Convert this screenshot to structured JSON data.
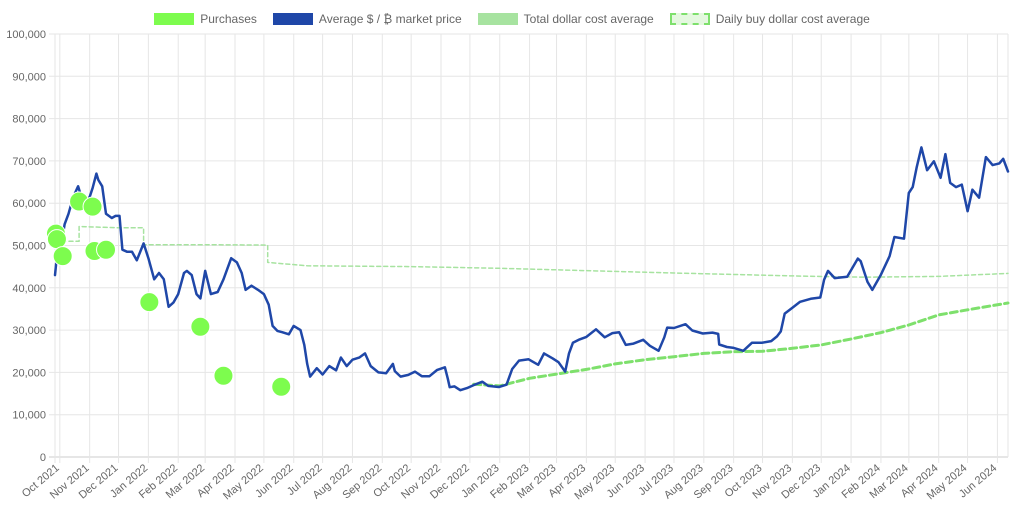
{
  "chart_data": {
    "type": "line",
    "title": "",
    "xlabel": "",
    "ylabel": "",
    "ylim": [
      0,
      100000
    ],
    "xlim": [
      "2021-09-26",
      "2024-06-12"
    ],
    "grid": true,
    "legend_position": "top-center",
    "y_ticks": [
      "0",
      "10,000",
      "20,000",
      "30,000",
      "40,000",
      "50,000",
      "60,000",
      "70,000",
      "80,000",
      "90,000",
      "100,000"
    ],
    "x_tick_labels": [
      "Oct 2021",
      "Nov 2021",
      "Dec 2021",
      "Jan 2022",
      "Feb 2022",
      "Mar 2022",
      "Apr 2022",
      "May 2022",
      "Jun 2022",
      "Jul 2022",
      "Aug 2022",
      "Sep 2022",
      "Oct 2022",
      "Nov 2022",
      "Dec 2022",
      "Jan 2023",
      "Feb 2023",
      "Mar 2023",
      "Apr 2023",
      "May 2023",
      "Jun 2023",
      "Jul 2023",
      "Aug 2023",
      "Sep 2023",
      "Oct 2023",
      "Nov 2023",
      "Dec 2023",
      "Jan 2024",
      "Feb 2024",
      "Mar 2024",
      "Apr 2024",
      "May 2024",
      "Jun 2024"
    ],
    "x_tick_dates": [
      "2021-10-01",
      "2021-11-01",
      "2021-12-01",
      "2022-01-01",
      "2022-02-01",
      "2022-03-01",
      "2022-04-01",
      "2022-05-01",
      "2022-06-01",
      "2022-07-01",
      "2022-08-01",
      "2022-09-01",
      "2022-10-01",
      "2022-11-01",
      "2022-12-01",
      "2023-01-01",
      "2023-02-01",
      "2023-03-01",
      "2023-04-01",
      "2023-05-01",
      "2023-06-01",
      "2023-07-01",
      "2023-08-01",
      "2023-09-01",
      "2023-10-01",
      "2023-11-01",
      "2023-12-01",
      "2024-01-01",
      "2024-02-01",
      "2024-03-01",
      "2024-04-01",
      "2024-05-01",
      "2024-06-01"
    ],
    "series": [
      {
        "name": "Purchases",
        "kind": "points",
        "color": "#7dfc4e",
        "points": [
          {
            "x": "2021-09-27",
            "y": 52800
          },
          {
            "x": "2021-09-28",
            "y": 51500
          },
          {
            "x": "2021-10-04",
            "y": 47500
          },
          {
            "x": "2021-10-21",
            "y": 60400
          },
          {
            "x": "2021-11-04",
            "y": 59200
          },
          {
            "x": "2021-11-06",
            "y": 48700
          },
          {
            "x": "2021-11-18",
            "y": 49000
          },
          {
            "x": "2022-01-02",
            "y": 36600
          },
          {
            "x": "2022-02-24",
            "y": 30800
          },
          {
            "x": "2022-03-20",
            "y": 19200
          },
          {
            "x": "2022-05-19",
            "y": 16600
          }
        ]
      },
      {
        "name": "Average $ / ₿ market price",
        "kind": "line",
        "color": "#1f47a8",
        "points": [
          {
            "x": "2021-09-26",
            "y": 43000
          },
          {
            "x": "2021-09-28",
            "y": 47500
          },
          {
            "x": "2021-10-01",
            "y": 48000
          },
          {
            "x": "2021-10-06",
            "y": 55000
          },
          {
            "x": "2021-10-10",
            "y": 57500
          },
          {
            "x": "2021-10-15",
            "y": 61500
          },
          {
            "x": "2021-10-20",
            "y": 64000
          },
          {
            "x": "2021-10-24",
            "y": 61000
          },
          {
            "x": "2021-10-28",
            "y": 60500
          },
          {
            "x": "2021-11-01",
            "y": 61500
          },
          {
            "x": "2021-11-04",
            "y": 63500
          },
          {
            "x": "2021-11-08",
            "y": 67000
          },
          {
            "x": "2021-11-10",
            "y": 65500
          },
          {
            "x": "2021-11-14",
            "y": 64000
          },
          {
            "x": "2021-11-18",
            "y": 57500
          },
          {
            "x": "2021-11-24",
            "y": 56500
          },
          {
            "x": "2021-11-28",
            "y": 57000
          },
          {
            "x": "2021-12-02",
            "y": 57000
          },
          {
            "x": "2021-12-05",
            "y": 49000
          },
          {
            "x": "2021-12-10",
            "y": 48500
          },
          {
            "x": "2021-12-15",
            "y": 48500
          },
          {
            "x": "2021-12-20",
            "y": 46500
          },
          {
            "x": "2021-12-27",
            "y": 50500
          },
          {
            "x": "2022-01-01",
            "y": 47000
          },
          {
            "x": "2022-01-07",
            "y": 42000
          },
          {
            "x": "2022-01-12",
            "y": 43500
          },
          {
            "x": "2022-01-17",
            "y": 42000
          },
          {
            "x": "2022-01-22",
            "y": 35500
          },
          {
            "x": "2022-01-27",
            "y": 36500
          },
          {
            "x": "2022-02-01",
            "y": 38500
          },
          {
            "x": "2022-02-07",
            "y": 43500
          },
          {
            "x": "2022-02-10",
            "y": 44000
          },
          {
            "x": "2022-02-15",
            "y": 43000
          },
          {
            "x": "2022-02-20",
            "y": 38500
          },
          {
            "x": "2022-02-24",
            "y": 37500
          },
          {
            "x": "2022-03-01",
            "y": 44000
          },
          {
            "x": "2022-03-07",
            "y": 38500
          },
          {
            "x": "2022-03-14",
            "y": 39000
          },
          {
            "x": "2022-03-20",
            "y": 42000
          },
          {
            "x": "2022-03-28",
            "y": 47000
          },
          {
            "x": "2022-04-03",
            "y": 46000
          },
          {
            "x": "2022-04-08",
            "y": 43500
          },
          {
            "x": "2022-04-12",
            "y": 39500
          },
          {
            "x": "2022-04-18",
            "y": 40500
          },
          {
            "x": "2022-04-25",
            "y": 39500
          },
          {
            "x": "2022-05-01",
            "y": 38500
          },
          {
            "x": "2022-05-06",
            "y": 36000
          },
          {
            "x": "2022-05-10",
            "y": 31000
          },
          {
            "x": "2022-05-15",
            "y": 29800
          },
          {
            "x": "2022-05-20",
            "y": 29500
          },
          {
            "x": "2022-05-27",
            "y": 29000
          },
          {
            "x": "2022-06-01",
            "y": 31000
          },
          {
            "x": "2022-06-08",
            "y": 30000
          },
          {
            "x": "2022-06-12",
            "y": 26500
          },
          {
            "x": "2022-06-15",
            "y": 22000
          },
          {
            "x": "2022-06-18",
            "y": 19000
          },
          {
            "x": "2022-06-25",
            "y": 21000
          },
          {
            "x": "2022-07-01",
            "y": 19500
          },
          {
            "x": "2022-07-08",
            "y": 21500
          },
          {
            "x": "2022-07-15",
            "y": 20500
          },
          {
            "x": "2022-07-20",
            "y": 23500
          },
          {
            "x": "2022-07-26",
            "y": 21500
          },
          {
            "x": "2022-08-01",
            "y": 23000
          },
          {
            "x": "2022-08-08",
            "y": 23500
          },
          {
            "x": "2022-08-14",
            "y": 24500
          },
          {
            "x": "2022-08-20",
            "y": 21500
          },
          {
            "x": "2022-08-28",
            "y": 20000
          },
          {
            "x": "2022-09-05",
            "y": 19800
          },
          {
            "x": "2022-09-12",
            "y": 22000
          },
          {
            "x": "2022-09-14",
            "y": 20300
          },
          {
            "x": "2022-09-20",
            "y": 19000
          },
          {
            "x": "2022-09-28",
            "y": 19400
          },
          {
            "x": "2022-10-05",
            "y": 20200
          },
          {
            "x": "2022-10-12",
            "y": 19100
          },
          {
            "x": "2022-10-20",
            "y": 19100
          },
          {
            "x": "2022-10-28",
            "y": 20600
          },
          {
            "x": "2022-11-05",
            "y": 21200
          },
          {
            "x": "2022-11-08",
            "y": 18500
          },
          {
            "x": "2022-11-10",
            "y": 16500
          },
          {
            "x": "2022-11-15",
            "y": 16700
          },
          {
            "x": "2022-11-21",
            "y": 15800
          },
          {
            "x": "2022-11-28",
            "y": 16300
          },
          {
            "x": "2022-12-05",
            "y": 17000
          },
          {
            "x": "2022-12-14",
            "y": 17800
          },
          {
            "x": "2022-12-20",
            "y": 16800
          },
          {
            "x": "2022-12-31",
            "y": 16550
          },
          {
            "x": "2023-01-08",
            "y": 17100
          },
          {
            "x": "2023-01-14",
            "y": 20800
          },
          {
            "x": "2023-01-21",
            "y": 22800
          },
          {
            "x": "2023-01-31",
            "y": 23100
          },
          {
            "x": "2023-02-10",
            "y": 21800
          },
          {
            "x": "2023-02-16",
            "y": 24500
          },
          {
            "x": "2023-02-25",
            "y": 23300
          },
          {
            "x": "2023-03-03",
            "y": 22400
          },
          {
            "x": "2023-03-10",
            "y": 20200
          },
          {
            "x": "2023-03-14",
            "y": 24500
          },
          {
            "x": "2023-03-18",
            "y": 27000
          },
          {
            "x": "2023-03-25",
            "y": 27800
          },
          {
            "x": "2023-04-01",
            "y": 28400
          },
          {
            "x": "2023-04-11",
            "y": 30200
          },
          {
            "x": "2023-04-20",
            "y": 28300
          },
          {
            "x": "2023-04-28",
            "y": 29300
          },
          {
            "x": "2023-05-05",
            "y": 29500
          },
          {
            "x": "2023-05-12",
            "y": 26500
          },
          {
            "x": "2023-05-20",
            "y": 26800
          },
          {
            "x": "2023-05-30",
            "y": 27700
          },
          {
            "x": "2023-06-06",
            "y": 26300
          },
          {
            "x": "2023-06-15",
            "y": 25100
          },
          {
            "x": "2023-06-21",
            "y": 28300
          },
          {
            "x": "2023-06-24",
            "y": 30600
          },
          {
            "x": "2023-07-01",
            "y": 30500
          },
          {
            "x": "2023-07-13",
            "y": 31400
          },
          {
            "x": "2023-07-20",
            "y": 29900
          },
          {
            "x": "2023-07-31",
            "y": 29200
          },
          {
            "x": "2023-08-10",
            "y": 29400
          },
          {
            "x": "2023-08-16",
            "y": 29100
          },
          {
            "x": "2023-08-17",
            "y": 26600
          },
          {
            "x": "2023-08-25",
            "y": 26000
          },
          {
            "x": "2023-09-01",
            "y": 25800
          },
          {
            "x": "2023-09-11",
            "y": 25100
          },
          {
            "x": "2023-09-20",
            "y": 27000
          },
          {
            "x": "2023-09-30",
            "y": 27000
          },
          {
            "x": "2023-10-10",
            "y": 27400
          },
          {
            "x": "2023-10-16",
            "y": 28500
          },
          {
            "x": "2023-10-20",
            "y": 29700
          },
          {
            "x": "2023-10-24",
            "y": 33900
          },
          {
            "x": "2023-11-01",
            "y": 35300
          },
          {
            "x": "2023-11-09",
            "y": 36700
          },
          {
            "x": "2023-11-20",
            "y": 37400
          },
          {
            "x": "2023-11-30",
            "y": 37700
          },
          {
            "x": "2023-12-04",
            "y": 41900
          },
          {
            "x": "2023-12-08",
            "y": 44000
          },
          {
            "x": "2023-12-15",
            "y": 42300
          },
          {
            "x": "2023-12-28",
            "y": 42600
          },
          {
            "x": "2024-01-08",
            "y": 46900
          },
          {
            "x": "2024-01-11",
            "y": 46300
          },
          {
            "x": "2024-01-18",
            "y": 41400
          },
          {
            "x": "2024-01-23",
            "y": 39500
          },
          {
            "x": "2024-02-01",
            "y": 43100
          },
          {
            "x": "2024-02-10",
            "y": 47500
          },
          {
            "x": "2024-02-15",
            "y": 52000
          },
          {
            "x": "2024-02-25",
            "y": 51600
          },
          {
            "x": "2024-03-01",
            "y": 62400
          },
          {
            "x": "2024-03-05",
            "y": 63800
          },
          {
            "x": "2024-03-09",
            "y": 68400
          },
          {
            "x": "2024-03-14",
            "y": 73200
          },
          {
            "x": "2024-03-20",
            "y": 67800
          },
          {
            "x": "2024-03-27",
            "y": 69900
          },
          {
            "x": "2024-04-03",
            "y": 66000
          },
          {
            "x": "2024-04-08",
            "y": 71600
          },
          {
            "x": "2024-04-13",
            "y": 64800
          },
          {
            "x": "2024-04-19",
            "y": 63800
          },
          {
            "x": "2024-04-25",
            "y": 64400
          },
          {
            "x": "2024-05-01",
            "y": 58100
          },
          {
            "x": "2024-05-06",
            "y": 63200
          },
          {
            "x": "2024-05-13",
            "y": 61300
          },
          {
            "x": "2024-05-20",
            "y": 70900
          },
          {
            "x": "2024-05-27",
            "y": 69000
          },
          {
            "x": "2024-06-03",
            "y": 69400
          },
          {
            "x": "2024-06-07",
            "y": 70500
          },
          {
            "x": "2024-06-12",
            "y": 67500
          }
        ]
      },
      {
        "name": "Total dollar cost average",
        "kind": "line",
        "color": "#a7e3a0",
        "points": [
          {
            "x": "2021-09-26",
            "y": 51000
          },
          {
            "x": "2021-10-21",
            "y": 51000
          },
          {
            "x": "2021-10-21",
            "y": 54500
          },
          {
            "x": "2021-11-28",
            "y": 54200
          },
          {
            "x": "2021-12-27",
            "y": 54200
          },
          {
            "x": "2021-12-27",
            "y": 50200
          },
          {
            "x": "2022-03-01",
            "y": 50200
          },
          {
            "x": "2022-05-05",
            "y": 50100
          },
          {
            "x": "2022-05-05",
            "y": 46000
          },
          {
            "x": "2022-06-15",
            "y": 45200
          },
          {
            "x": "2022-09-30",
            "y": 45000
          },
          {
            "x": "2023-01-01",
            "y": 44600
          },
          {
            "x": "2023-07-01",
            "y": 43500
          },
          {
            "x": "2023-11-05",
            "y": 42800
          },
          {
            "x": "2024-01-15",
            "y": 42500
          },
          {
            "x": "2024-04-01",
            "y": 42700
          },
          {
            "x": "2024-06-12",
            "y": 43400
          }
        ]
      },
      {
        "name": "Daily buy dollar cost average",
        "kind": "line",
        "color": "#7ee06c",
        "points": [
          {
            "x": "2022-12-05",
            "y": 17200
          },
          {
            "x": "2023-01-01",
            "y": 16800
          },
          {
            "x": "2023-02-01",
            "y": 18600
          },
          {
            "x": "2023-03-01",
            "y": 19600
          },
          {
            "x": "2023-04-01",
            "y": 20700
          },
          {
            "x": "2023-05-01",
            "y": 22000
          },
          {
            "x": "2023-06-01",
            "y": 23000
          },
          {
            "x": "2023-07-01",
            "y": 23700
          },
          {
            "x": "2023-08-01",
            "y": 24500
          },
          {
            "x": "2023-09-01",
            "y": 24900
          },
          {
            "x": "2023-10-01",
            "y": 25000
          },
          {
            "x": "2023-11-01",
            "y": 25700
          },
          {
            "x": "2023-12-01",
            "y": 26500
          },
          {
            "x": "2024-01-01",
            "y": 27900
          },
          {
            "x": "2024-02-01",
            "y": 29400
          },
          {
            "x": "2024-03-01",
            "y": 31200
          },
          {
            "x": "2024-04-01",
            "y": 33600
          },
          {
            "x": "2024-05-01",
            "y": 34800
          },
          {
            "x": "2024-06-12",
            "y": 36400
          }
        ]
      }
    ]
  }
}
